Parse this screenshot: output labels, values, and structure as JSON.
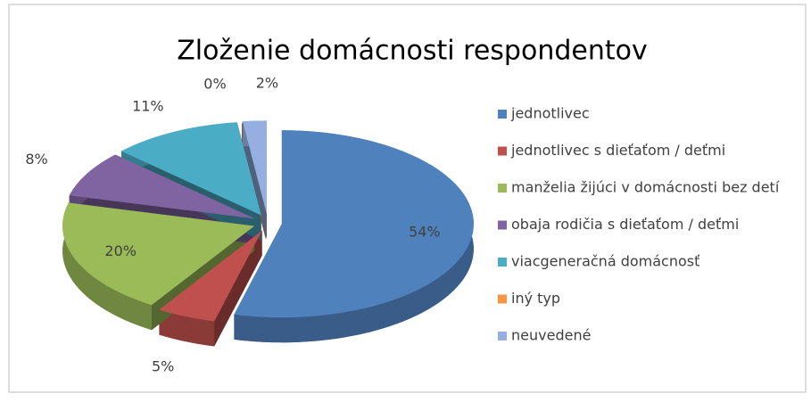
{
  "chart_data": {
    "type": "pie",
    "title": "Zloženie domácnosti respondentov",
    "categories": [
      "jednotlivec",
      "jednotlivec s dieťaťom / deťmi",
      "manželia žijúci v domácnosti bez detí",
      "obaja rodičia s dieťaťom / deťmi",
      "viacgeneračná domácnosť",
      "iný typ",
      "neuvedené"
    ],
    "values": [
      54,
      5,
      20,
      8,
      11,
      0,
      2
    ],
    "value_labels": [
      "54%",
      "5%",
      "20%",
      "8%",
      "11%",
      "0%",
      "2%"
    ],
    "colors": [
      "#4f81bd",
      "#c0504d",
      "#9bbb59",
      "#8064a2",
      "#4bacc6",
      "#f79646",
      "#95b0e0"
    ],
    "legend": "right"
  }
}
